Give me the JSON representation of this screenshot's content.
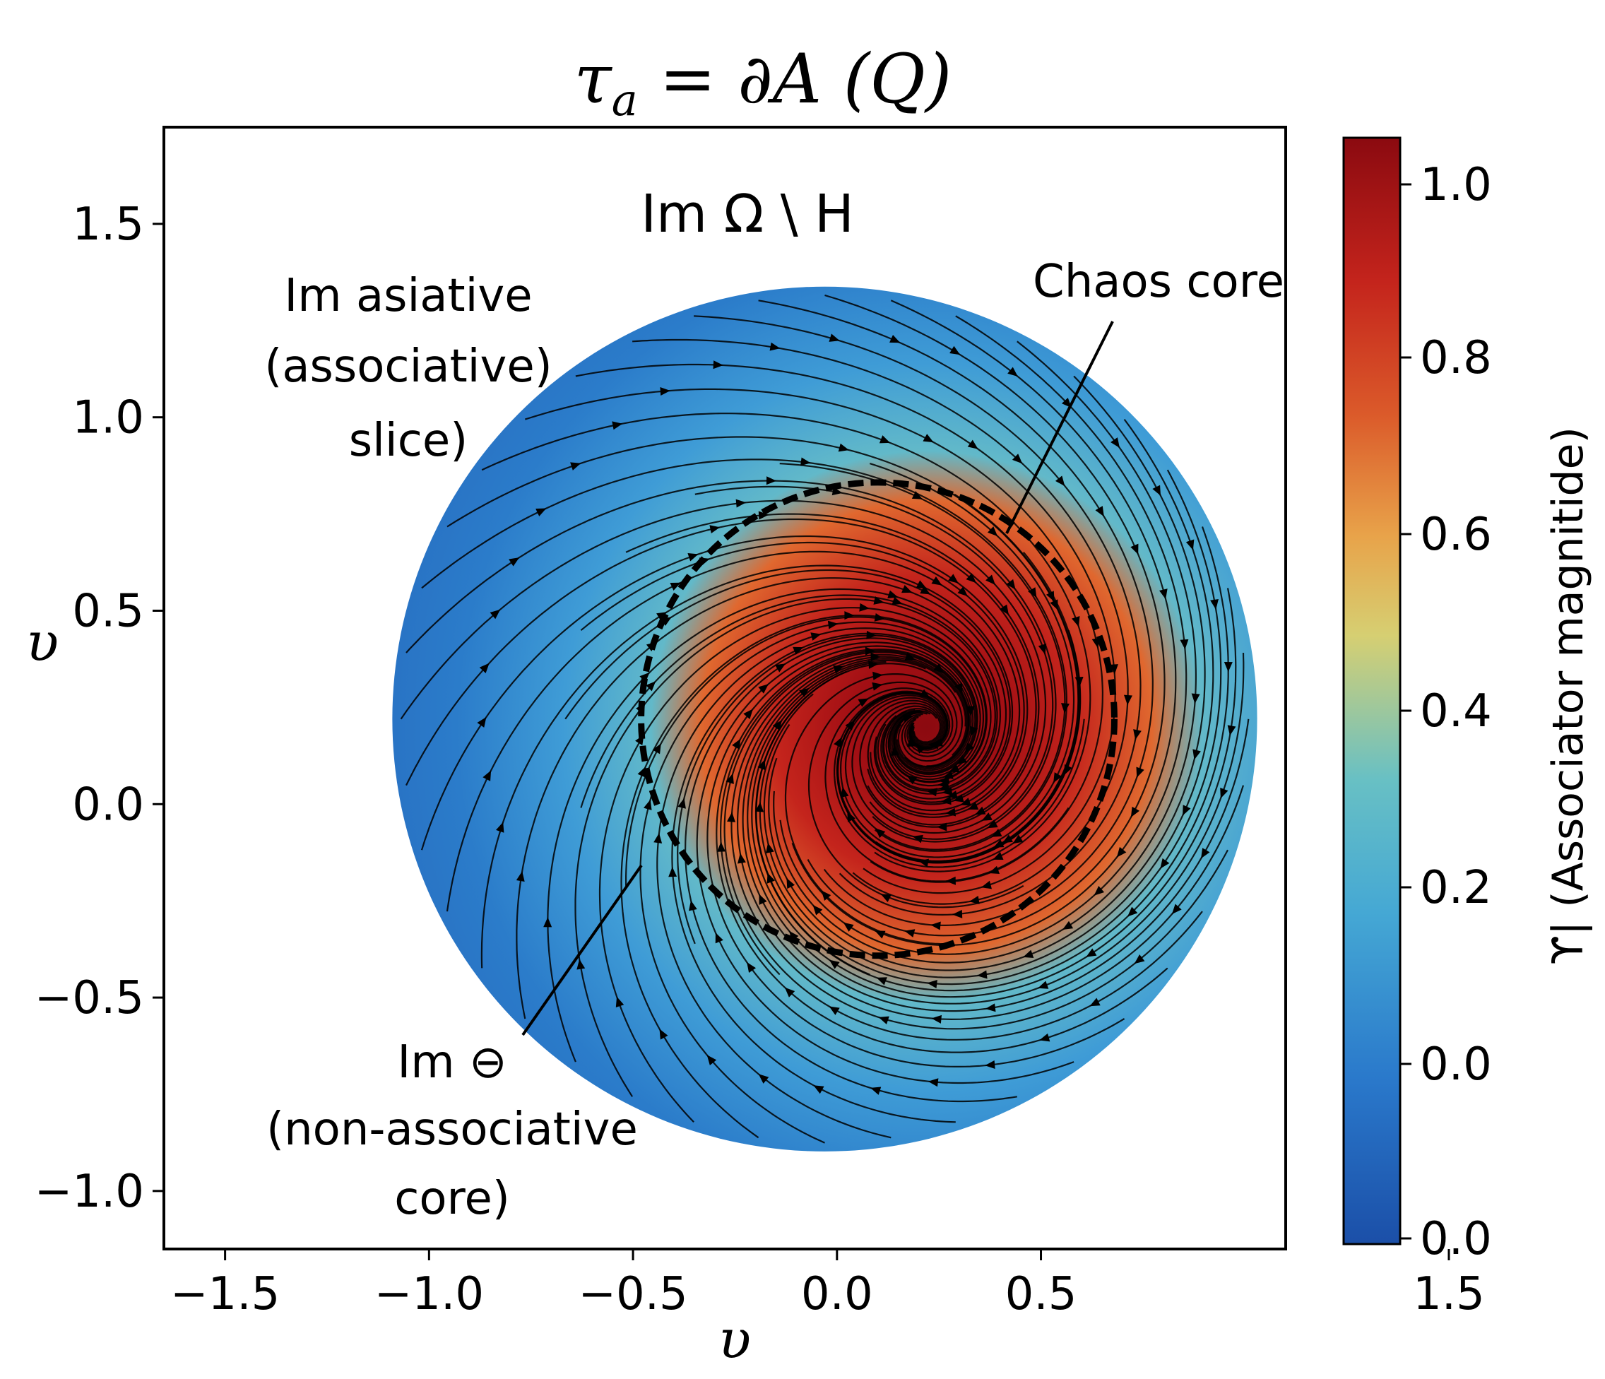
{
  "chart_data": {
    "type": "heatmap",
    "title": "τₐ = ∂A (Q)",
    "xlabel": "υ",
    "ylabel": "υ",
    "xlim": [
      -1.65,
      1.1
    ],
    "ylim": [
      -1.15,
      1.75
    ],
    "xticks": [
      -1.5,
      -1.0,
      -0.5,
      0.0,
      0.5,
      1.5
    ],
    "yticks": [
      -1.0,
      -0.5,
      0.0,
      0.5,
      1.0,
      1.5
    ],
    "grid": false,
    "field": {
      "kind": "streamlines over scalar magnitude",
      "domain_circle": {
        "center": [
          -0.03,
          0.22
        ],
        "radius": 1.06
      },
      "magnitude_peak": {
        "center": [
          0.22,
          0.2
        ],
        "value": 1.0
      },
      "background_value": 0.0
    },
    "chaos_core_boundary": {
      "style": "dashed",
      "center": [
        0.1,
        0.22
      ],
      "radius": 0.58
    },
    "colorbar": {
      "label": "ϒ| (Associator magnitide)",
      "ticks": [
        "0.0",
        "0.0",
        "0.2",
        "0.4",
        "0.6",
        "0.8",
        "1.0"
      ],
      "colormap": [
        "#1b4fa8",
        "#2a79cb",
        "#45a8d4",
        "#68c0c4",
        "#d6cf72",
        "#e8a34a",
        "#db5a2a",
        "#c4241c",
        "#8b0a10"
      ]
    },
    "annotations": {
      "region_label": "Im Ω \\ H",
      "assoc_slice": [
        "Im asiative",
        "(associative)",
        "slice)"
      ],
      "chaos_core": "Chaos core",
      "nonassoc": [
        "Im ⊖",
        "(non-associative",
        "core)"
      ]
    }
  }
}
